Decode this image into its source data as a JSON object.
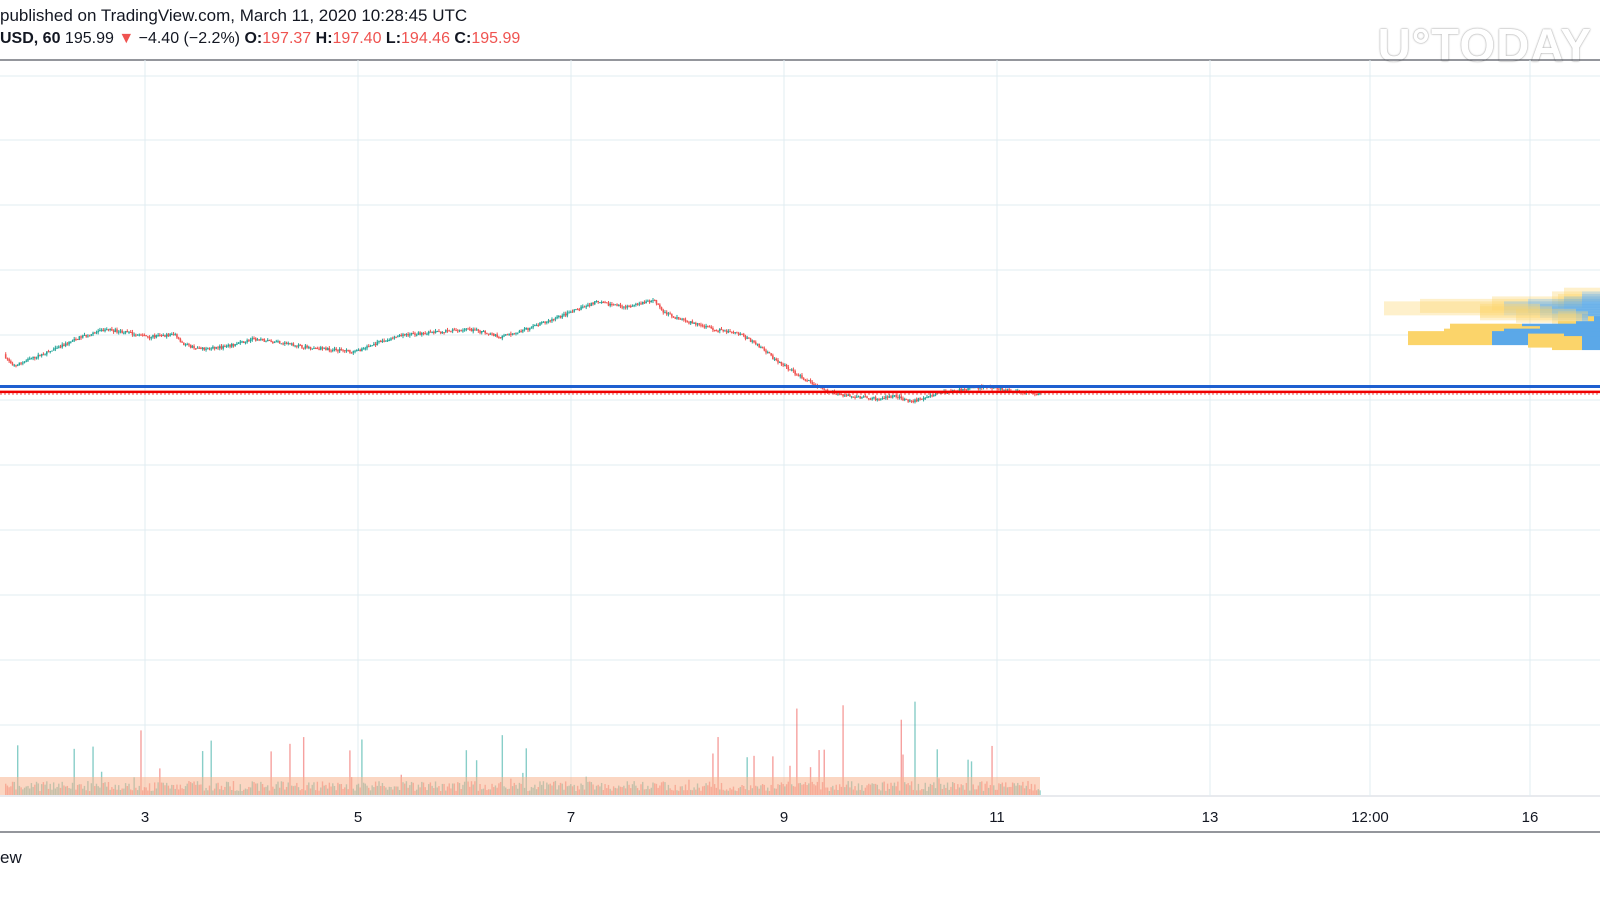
{
  "header": {
    "published": "published on TradingView.com, March 11, 2020 10:28:45 UTC",
    "symbol": "USD, 60",
    "last": "195.99",
    "arrow": "▼",
    "change": "−4.40 (−2.2%)",
    "o_label": "O:",
    "o_value": "197.37",
    "h_label": "H:",
    "h_value": "197.40",
    "l_label": "L:",
    "l_value": "194.46",
    "c_label": "C:",
    "c_value": "195.99"
  },
  "watermark": "U°TODAY",
  "footer": {
    "text": "ew"
  },
  "colors": {
    "up": "#26a69a",
    "down": "#ef5350",
    "grid": "#e1ecf2",
    "support": "#ef0000",
    "resistance": "#1e5fd0",
    "vp_yellow": "#fbd46a",
    "vp_blue": "#5ba8e8",
    "vol_ma": "#f7b58f"
  },
  "chart_data": {
    "type": "candlestick",
    "x_ticks": [
      "3",
      "5",
      "7",
      "9",
      "11",
      "13",
      "12:00",
      "16"
    ],
    "ylim": [
      180,
      240
    ],
    "price_path": [
      [
        0,
        212
      ],
      [
        5,
        207
      ],
      [
        15,
        210
      ],
      [
        30,
        214
      ],
      [
        45,
        219
      ],
      [
        60,
        222
      ],
      [
        70,
        221
      ],
      [
        85,
        219
      ],
      [
        100,
        220
      ],
      [
        105,
        216
      ],
      [
        115,
        214
      ],
      [
        130,
        215
      ],
      [
        145,
        218
      ],
      [
        160,
        217
      ],
      [
        175,
        215
      ],
      [
        190,
        214
      ],
      [
        205,
        213
      ],
      [
        220,
        217
      ],
      [
        235,
        220
      ],
      [
        255,
        221
      ],
      [
        270,
        222
      ],
      [
        280,
        221
      ],
      [
        290,
        219
      ],
      [
        305,
        222
      ],
      [
        320,
        226
      ],
      [
        335,
        230
      ],
      [
        345,
        233
      ],
      [
        355,
        232
      ],
      [
        365,
        231
      ],
      [
        375,
        233
      ],
      [
        380,
        234
      ],
      [
        385,
        229
      ],
      [
        395,
        226
      ],
      [
        405,
        224
      ],
      [
        415,
        222
      ],
      [
        430,
        220
      ],
      [
        440,
        216
      ],
      [
        450,
        210
      ],
      [
        465,
        203
      ],
      [
        480,
        197
      ],
      [
        495,
        195
      ],
      [
        510,
        194
      ],
      [
        520,
        195
      ],
      [
        530,
        193
      ],
      [
        545,
        196
      ],
      [
        560,
        198
      ],
      [
        575,
        199
      ],
      [
        590,
        197
      ],
      [
        605,
        195.99
      ]
    ],
    "levels": {
      "resistance": 199.0,
      "support": 196.8,
      "last": 195.99
    },
    "volume_profile": [
      [
        236,
        0.06,
        0.0
      ],
      [
        234.5,
        0.05,
        0.03
      ],
      [
        233.5,
        0.04,
        0.03
      ],
      [
        232.5,
        0.12,
        0.06
      ],
      [
        231.5,
        0.18,
        0.12
      ],
      [
        230.5,
        0.2,
        0.16
      ],
      [
        229.5,
        0.1,
        0.1
      ],
      [
        228.5,
        0.12,
        0.08
      ],
      [
        227.5,
        0.1,
        0.04
      ],
      [
        226.5,
        0.05,
        0.02
      ],
      [
        225.5,
        0.05,
        0.03
      ],
      [
        224.5,
        0.01,
        0.01
      ],
      [
        222.5,
        0.03,
        0.04
      ],
      [
        221.5,
        0.12,
        0.13
      ],
      [
        220.5,
        0.08,
        0.1
      ],
      [
        219.5,
        0.1,
        0.16
      ],
      [
        218.5,
        0.14,
        0.18
      ],
      [
        217.5,
        0.06,
        0.06
      ],
      [
        216.5,
        0.05,
        0.03
      ]
    ]
  }
}
